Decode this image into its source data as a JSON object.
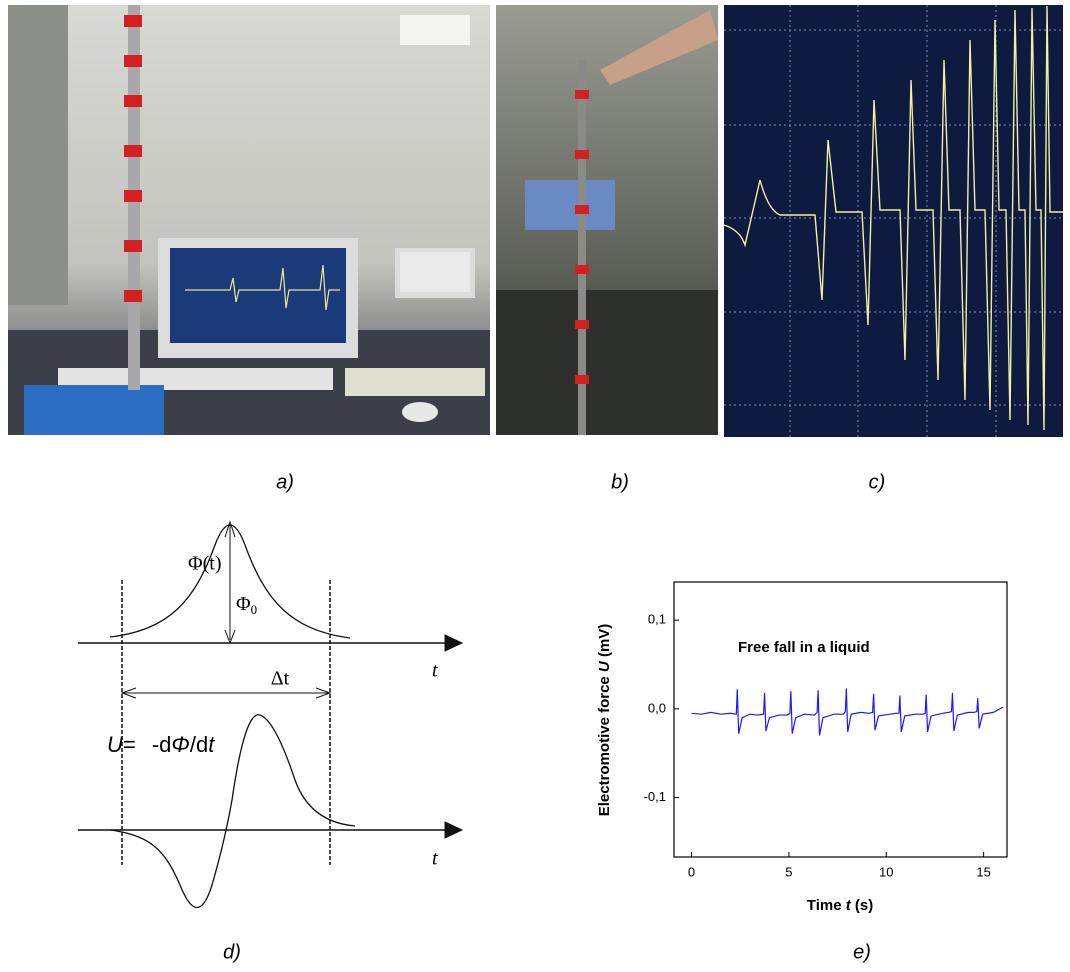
{
  "panels": {
    "a": "a)",
    "b": "b)",
    "c": "c)",
    "d": "d)",
    "e": "e)"
  },
  "diagram": {
    "phi_t": "Φ(t)",
    "phi0": [
      "Φ",
      "0"
    ],
    "delta_t": "Δt",
    "t_top": "t",
    "t_bottom": "t",
    "formula": [
      "U",
      "= ",
      "-d",
      "Φ",
      "/d",
      "t"
    ]
  },
  "chart_data": {
    "type": "line",
    "annotation": "Free fall in  a liquid",
    "x_label": [
      "Time ",
      "t",
      " (s)"
    ],
    "y_label": [
      "Electromotive  force  ",
      "U",
      " (mV)"
    ],
    "xlim": [
      -0.9,
      16.2
    ],
    "ylim": [
      -0.167,
      0.143
    ],
    "xticks": [
      0,
      5,
      10,
      15
    ],
    "yticks": [
      {
        "value": -0.1,
        "label": "-0,1"
      },
      {
        "value": 0,
        "label": "0,0"
      },
      {
        "value": 0.1,
        "label": "0,1"
      }
    ],
    "series": [
      {
        "color": "#1a1aff",
        "x": [
          0,
          0.5,
          1.0,
          1.5,
          2.0,
          2.3,
          2.35,
          2.42,
          2.6,
          3.0,
          3.4,
          3.7,
          3.75,
          3.82,
          4.0,
          4.5,
          4.9,
          5.05,
          5.1,
          5.17,
          5.35,
          5.8,
          6.3,
          6.45,
          6.5,
          6.57,
          6.75,
          7.3,
          7.8,
          7.9,
          7.95,
          8.02,
          8.2,
          8.7,
          9.1,
          9.3,
          9.35,
          9.42,
          9.6,
          10.2,
          10.5,
          10.65,
          10.7,
          10.77,
          10.95,
          11.5,
          11.9,
          12.0,
          12.05,
          12.12,
          12.3,
          12.9,
          13.2,
          13.35,
          13.4,
          13.47,
          13.65,
          14.2,
          14.5,
          14.65,
          14.7,
          14.77,
          14.95,
          15.5,
          16.0
        ],
        "values": [
          -0.005,
          -0.006,
          -0.004,
          -0.006,
          -0.005,
          -0.006,
          0.022,
          -0.028,
          -0.01,
          -0.006,
          -0.007,
          -0.006,
          0.018,
          -0.025,
          -0.01,
          -0.007,
          -0.007,
          -0.005,
          0.02,
          -0.028,
          -0.01,
          -0.006,
          -0.007,
          -0.004,
          0.021,
          -0.03,
          -0.01,
          -0.006,
          -0.006,
          -0.003,
          0.023,
          -0.026,
          -0.006,
          -0.004,
          -0.005,
          -0.004,
          0.017,
          -0.024,
          -0.008,
          -0.006,
          -0.005,
          -0.005,
          0.015,
          -0.026,
          -0.008,
          -0.006,
          -0.006,
          -0.005,
          0.016,
          -0.026,
          -0.008,
          -0.005,
          -0.004,
          -0.003,
          0.018,
          -0.025,
          -0.007,
          -0.004,
          -0.004,
          -0.003,
          0.012,
          -0.022,
          -0.006,
          -0.004,
          0.002
        ]
      }
    ]
  }
}
